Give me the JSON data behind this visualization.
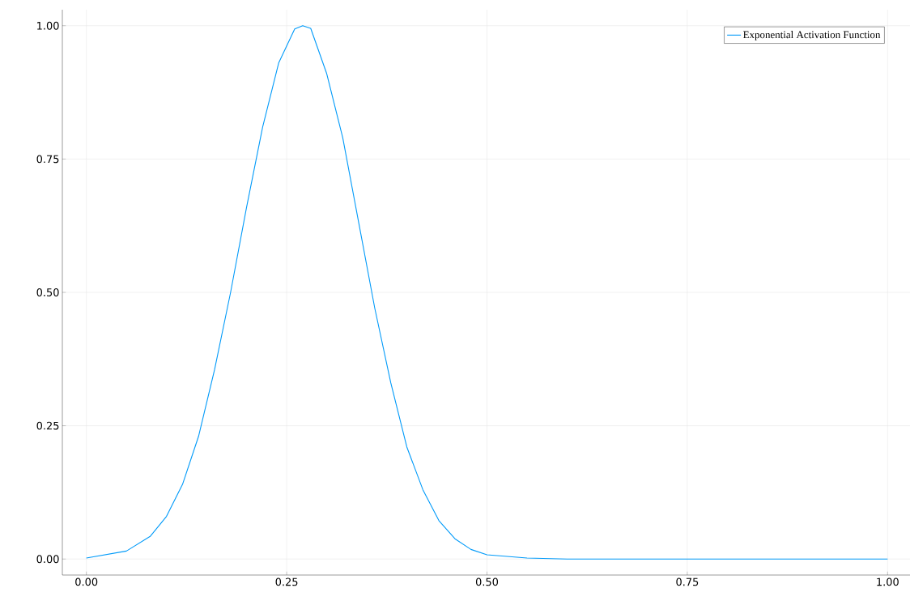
{
  "chart_data": {
    "type": "line",
    "xlim": [
      -0.03,
      1.028
    ],
    "ylim": [
      -0.03,
      1.03
    ],
    "xticks": [
      {
        "value": 0,
        "label": "0.00"
      },
      {
        "value": 0.25,
        "label": "0.25"
      },
      {
        "value": 0.5,
        "label": "0.50"
      },
      {
        "value": 0.75,
        "label": "0.75"
      },
      {
        "value": 1,
        "label": "1.00"
      }
    ],
    "yticks": [
      {
        "value": 0,
        "label": "0.00"
      },
      {
        "value": 0.25,
        "label": "0.25"
      },
      {
        "value": 0.5,
        "label": "0.50"
      },
      {
        "value": 0.75,
        "label": "0.75"
      },
      {
        "value": 1,
        "label": "1.00"
      }
    ],
    "grid": true,
    "legend": "top right",
    "marker": "none",
    "line_style": "solid",
    "series": [
      {
        "name": "Exponential Activation Function",
        "color": "#009af9",
        "x": [
          0,
          0.05,
          0.08,
          0.1,
          0.12,
          0.14,
          0.16,
          0.18,
          0.2,
          0.22,
          0.24,
          0.26,
          0.27,
          0.28,
          0.3,
          0.32,
          0.34,
          0.36,
          0.38,
          0.4,
          0.42,
          0.44,
          0.46,
          0.48,
          0.5,
          0.55,
          0.6,
          0.7,
          0.8,
          0.9,
          1.0
        ],
        "values": [
          0.002,
          0.015,
          0.043,
          0.08,
          0.14,
          0.23,
          0.355,
          0.5,
          0.66,
          0.81,
          0.93,
          0.994,
          1.0,
          0.995,
          0.91,
          0.79,
          0.63,
          0.47,
          0.33,
          0.21,
          0.13,
          0.072,
          0.038,
          0.018,
          0.008,
          0.002,
          0,
          0,
          0,
          0,
          0
        ]
      }
    ]
  }
}
